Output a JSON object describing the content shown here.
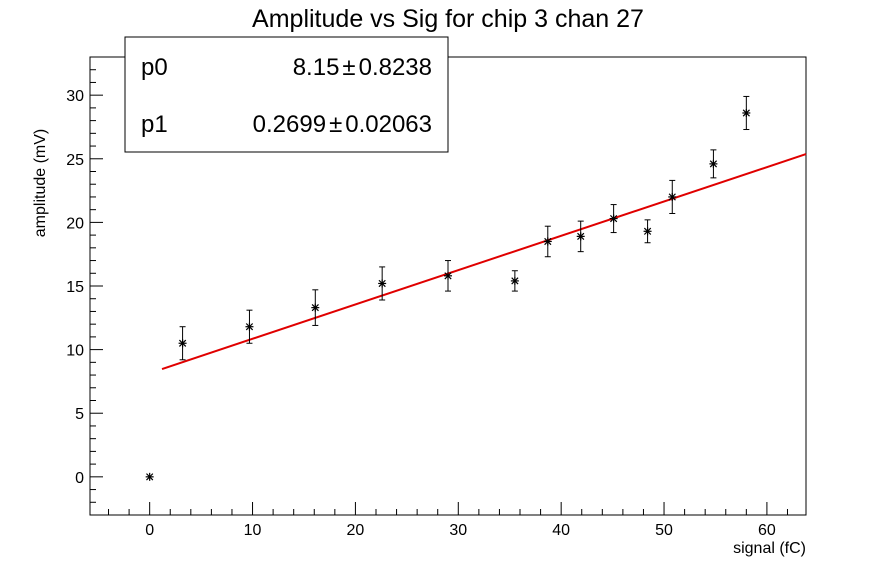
{
  "chart_data": {
    "type": "scatter",
    "title": "Amplitude vs Sig for chip 3 chan 27",
    "xlabel": "signal (fC)",
    "ylabel": "amplitude (mV)",
    "xlim": [
      -5.8,
      63.8
    ],
    "ylim": [
      -3.0,
      33.0
    ],
    "x_ticks": [
      0,
      10,
      20,
      30,
      40,
      50,
      60
    ],
    "y_ticks": [
      0,
      5,
      10,
      15,
      20,
      25,
      30
    ],
    "grid": false,
    "points": [
      {
        "x": 0.0,
        "y": 0.0,
        "err": 0.0
      },
      {
        "x": 3.2,
        "y": 10.5,
        "err": 1.3
      },
      {
        "x": 9.7,
        "y": 11.8,
        "err": 1.3
      },
      {
        "x": 16.1,
        "y": 13.3,
        "err": 1.4
      },
      {
        "x": 22.6,
        "y": 15.2,
        "err": 1.3
      },
      {
        "x": 29.0,
        "y": 15.8,
        "err": 1.2
      },
      {
        "x": 35.5,
        "y": 15.4,
        "err": 0.8
      },
      {
        "x": 38.7,
        "y": 18.5,
        "err": 1.2
      },
      {
        "x": 41.9,
        "y": 18.9,
        "err": 1.2
      },
      {
        "x": 45.1,
        "y": 20.3,
        "err": 1.1
      },
      {
        "x": 48.4,
        "y": 19.3,
        "err": 0.9
      },
      {
        "x": 50.8,
        "y": 22.0,
        "err": 1.3
      },
      {
        "x": 54.8,
        "y": 24.6,
        "err": 1.1
      },
      {
        "x": 58.0,
        "y": 28.6,
        "err": 1.3
      }
    ],
    "fit": {
      "color": "#e00000",
      "p0": 8.15,
      "p1": 0.2699,
      "x_range": [
        1.2,
        63.8
      ]
    },
    "stats": [
      {
        "name": "p0",
        "value": "8.15",
        "pm": "±",
        "error": "0.8238"
      },
      {
        "name": "p1",
        "value": "0.2699",
        "pm": "±",
        "error": "0.02063"
      }
    ]
  }
}
